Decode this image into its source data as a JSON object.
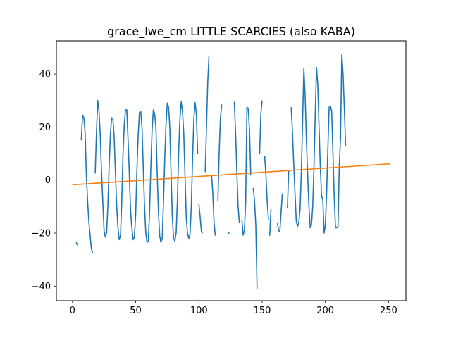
{
  "chart_data": {
    "type": "line",
    "title": "grace_lwe_cm LITTLE SCARCIES (also KABA)",
    "xlabel": "",
    "ylabel": "",
    "xlim": [
      -12.7,
      263.7
    ],
    "ylim": [
      -45.5,
      52.5
    ],
    "xticks": [
      0,
      50,
      100,
      150,
      200,
      250
    ],
    "yticks": [
      -40,
      -20,
      0,
      20,
      40
    ],
    "grid": false,
    "colors": {
      "series": "#1f77b4",
      "trend": "#ff7f0e"
    },
    "series": [
      {
        "points": [
          [
            3,
            -23.5
          ],
          [
            4,
            -24.6
          ],
          null,
          [
            7,
            15
          ],
          [
            8,
            24.5
          ],
          [
            9,
            23.5
          ],
          [
            10,
            18
          ],
          [
            11,
            2
          ],
          [
            12,
            -8
          ],
          [
            13,
            -16
          ],
          [
            14,
            -21
          ],
          [
            15,
            -26
          ],
          [
            16,
            -27.5
          ],
          null,
          [
            18,
            2.5
          ],
          [
            19,
            18
          ],
          [
            20,
            30
          ],
          [
            21,
            26
          ],
          [
            22,
            17
          ],
          [
            23,
            3
          ],
          [
            24,
            -8
          ],
          [
            25,
            -19
          ],
          [
            26,
            -21.5
          ],
          [
            27,
            -20
          ],
          [
            28,
            -10
          ],
          [
            29,
            5
          ],
          [
            30,
            17
          ],
          [
            31,
            23.5
          ],
          [
            32,
            23
          ],
          [
            33,
            16
          ],
          [
            34,
            3
          ],
          [
            35,
            -10
          ],
          [
            36,
            -18
          ],
          [
            37,
            -22.5
          ],
          [
            38,
            -21
          ],
          [
            39,
            -8
          ],
          [
            40,
            10
          ],
          [
            41,
            21
          ],
          [
            42,
            26.5
          ],
          [
            43,
            26.5
          ],
          [
            44,
            15
          ],
          [
            45,
            2
          ],
          [
            46,
            -12
          ],
          [
            47,
            -18
          ],
          [
            48,
            -22.5
          ],
          [
            49,
            -21.5
          ],
          [
            50,
            -13
          ],
          [
            51,
            4
          ],
          [
            52,
            17
          ],
          [
            53,
            25.5
          ],
          [
            54,
            26
          ],
          [
            55,
            20
          ],
          [
            56,
            5
          ],
          [
            57,
            -10
          ],
          [
            58,
            -20
          ],
          [
            59,
            -23.5
          ],
          [
            60,
            -23
          ],
          [
            61,
            -12
          ],
          [
            62,
            5
          ],
          [
            63,
            19
          ],
          [
            64,
            26.5
          ],
          [
            65,
            25
          ],
          [
            66,
            20
          ],
          [
            67,
            3
          ],
          [
            68,
            -12
          ],
          [
            69,
            -21
          ],
          [
            70,
            -23.5
          ],
          [
            71,
            -22
          ],
          [
            72,
            -8
          ],
          [
            73,
            8
          ],
          [
            74,
            21
          ],
          [
            75,
            29
          ],
          [
            76,
            27.5
          ],
          [
            77,
            20
          ],
          [
            78,
            2
          ],
          [
            79,
            -14
          ],
          [
            80,
            -22
          ],
          [
            81,
            -23
          ],
          [
            82,
            -20
          ],
          [
            83,
            -8
          ],
          [
            84,
            11
          ],
          [
            85,
            23
          ],
          [
            86,
            29.5
          ],
          [
            87,
            26
          ],
          [
            88,
            18
          ],
          [
            89,
            2
          ],
          [
            90,
            -14
          ],
          [
            91,
            -20
          ],
          [
            92,
            -22
          ],
          [
            93,
            -20.5
          ],
          [
            94,
            -10
          ],
          [
            95,
            8
          ],
          [
            96,
            23
          ],
          [
            97,
            29.2
          ],
          [
            98,
            25
          ],
          [
            99,
            10
          ],
          null,
          [
            100,
            -9
          ],
          [
            101,
            -14
          ],
          [
            102,
            -19.5
          ],
          [
            103,
            -20
          ],
          null,
          [
            105,
            3
          ],
          [
            106,
            20
          ],
          [
            107,
            37
          ],
          [
            108,
            47
          ],
          null,
          [
            110,
            2
          ],
          [
            111,
            -5
          ],
          [
            112,
            -16
          ],
          [
            113,
            -21
          ],
          null,
          [
            115,
            -8
          ],
          [
            116,
            10
          ],
          [
            117,
            23
          ],
          [
            118,
            28.5
          ],
          null,
          [
            121,
            -9
          ],
          null,
          [
            123,
            -19.5
          ],
          [
            124,
            -20.2
          ],
          null,
          [
            125,
            3
          ],
          null,
          [
            128,
            29.5
          ],
          [
            129,
            18
          ],
          [
            130,
            3
          ],
          [
            131,
            -10
          ],
          [
            132,
            -16
          ],
          null,
          [
            134,
            -15
          ],
          [
            135,
            -20.8
          ],
          [
            136,
            -19
          ],
          [
            137,
            -8
          ],
          [
            138,
            27.5
          ],
          [
            139,
            27
          ],
          [
            140,
            19
          ],
          [
            141,
            2
          ],
          null,
          [
            143,
            -3
          ],
          [
            144,
            -8
          ],
          [
            145,
            -17
          ],
          [
            146,
            -41
          ],
          null,
          [
            148,
            10
          ],
          [
            149,
            25
          ],
          [
            150,
            30
          ],
          null,
          [
            152,
            9
          ],
          [
            153,
            2
          ],
          [
            154,
            -8
          ],
          [
            155,
            -15
          ],
          null,
          [
            156,
            -21
          ],
          [
            157,
            -11
          ],
          null,
          [
            159,
            2.5
          ],
          null,
          [
            160,
            -7
          ],
          null,
          [
            162,
            -16
          ],
          [
            163,
            -19
          ],
          [
            164,
            -19.5
          ],
          [
            165,
            -12
          ],
          [
            166,
            -5
          ],
          null,
          [
            170,
            -10.5
          ],
          [
            171,
            3.5
          ],
          null,
          [
            173,
            27.5
          ],
          [
            174,
            18
          ],
          [
            175,
            6
          ],
          [
            176,
            -5
          ],
          [
            177,
            -15.5
          ],
          [
            178,
            -17.5
          ],
          [
            179,
            -16
          ],
          [
            180,
            -11
          ],
          [
            181,
            3
          ],
          [
            182,
            22
          ],
          [
            183,
            42
          ],
          [
            184,
            32
          ],
          [
            185,
            15
          ],
          [
            186,
            2
          ],
          [
            187,
            -10
          ],
          [
            188,
            -18
          ],
          [
            189,
            -17
          ],
          [
            190,
            -10
          ],
          [
            191,
            5
          ],
          [
            192,
            25
          ],
          [
            193,
            42.5
          ],
          [
            194,
            36
          ],
          [
            195,
            20
          ],
          [
            196,
            5
          ],
          [
            197,
            -6
          ],
          [
            198,
            -7.5
          ],
          [
            199,
            -20
          ],
          [
            200,
            -17
          ],
          [
            201,
            -5
          ],
          [
            202,
            12
          ],
          [
            203,
            27.5
          ],
          [
            204,
            27.8
          ],
          [
            205,
            26
          ],
          [
            206,
            10
          ],
          [
            207,
            -6
          ],
          [
            208,
            -18
          ],
          [
            209,
            -18
          ],
          [
            210,
            -17.5
          ],
          [
            211,
            5
          ],
          [
            212,
            16
          ],
          [
            213,
            47.5
          ],
          [
            214,
            40
          ],
          [
            215,
            27
          ],
          [
            216,
            13
          ]
        ]
      },
      {
        "type": "trend",
        "points": [
          [
            0,
            -1.8
          ],
          [
            251,
            6.1
          ]
        ]
      }
    ]
  }
}
